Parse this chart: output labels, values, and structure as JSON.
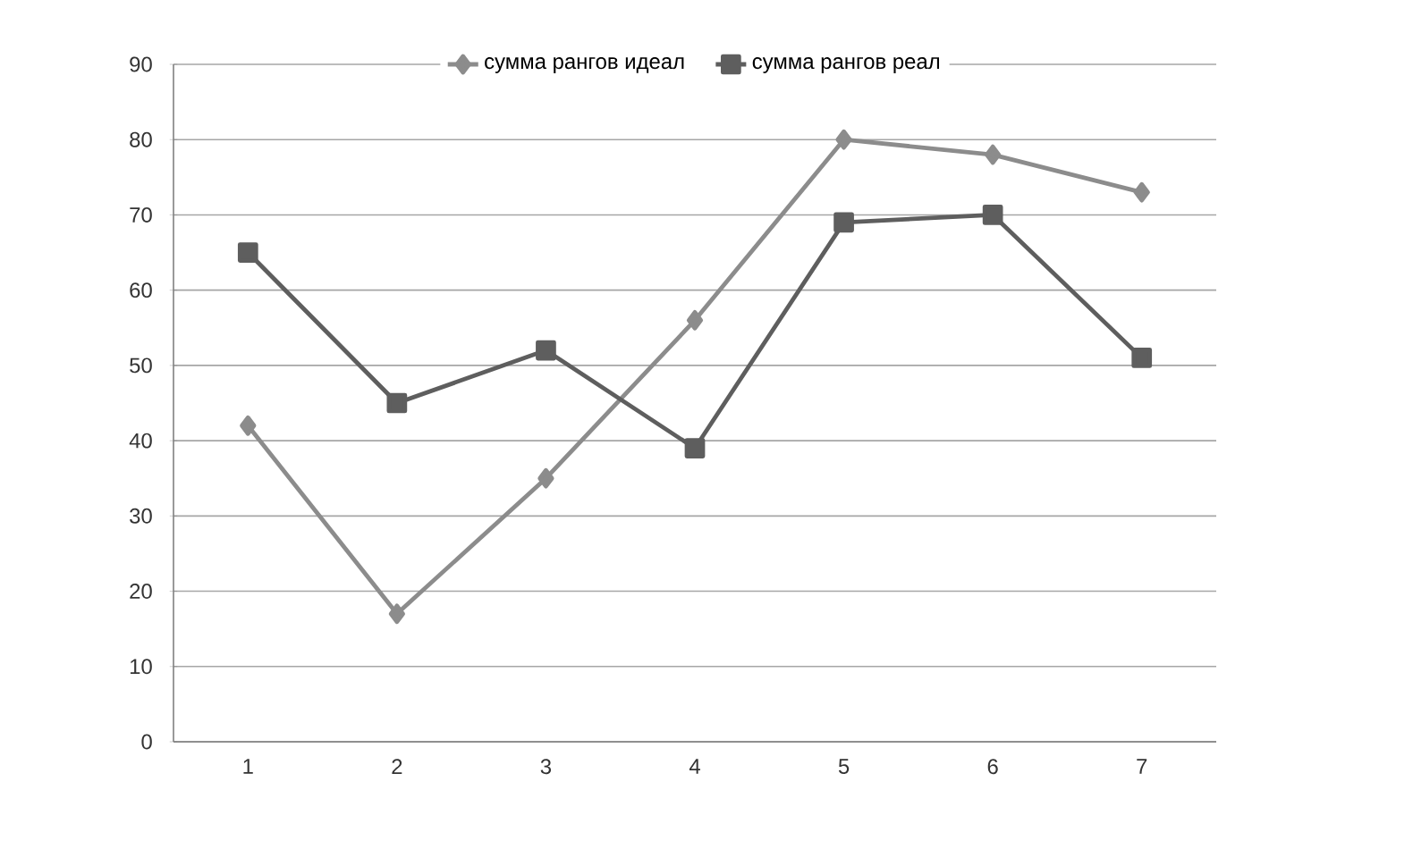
{
  "chart_data": {
    "type": "line",
    "categories": [
      "1",
      "2",
      "3",
      "4",
      "5",
      "6",
      "7"
    ],
    "series": [
      {
        "name": "сумма рангов идеал",
        "color": "#8c8c8c",
        "marker": "diamond",
        "values": [
          42,
          17,
          35,
          56,
          80,
          78,
          73
        ]
      },
      {
        "name": "сумма рангов реал",
        "color": "#5e5e5e",
        "marker": "square",
        "values": [
          65,
          45,
          52,
          39,
          69,
          70,
          51
        ]
      }
    ],
    "ylim": [
      0,
      90
    ],
    "yticks": [
      0,
      10,
      20,
      30,
      40,
      50,
      60,
      70,
      80,
      90
    ],
    "grid": "y",
    "legend": "top",
    "line_style": "solid"
  }
}
